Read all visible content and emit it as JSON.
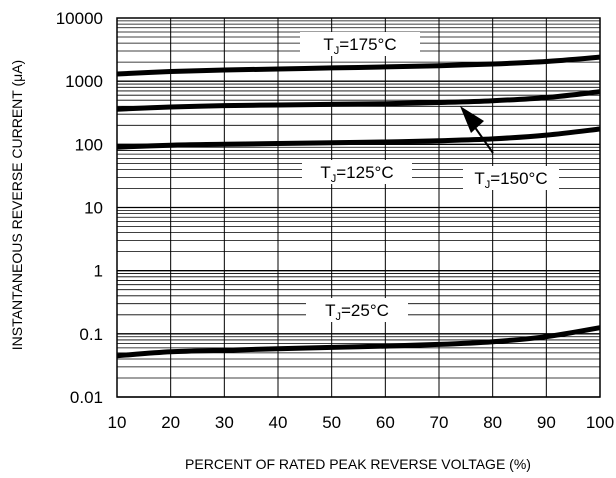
{
  "chart_data": {
    "type": "line",
    "xlabel": "PERCENT OF RATED PEAK REVERSE VOLTAGE (%)",
    "ylabel": "INSTANTANEOUS REVERSE CURRENT (μA)",
    "xlim": [
      10,
      100
    ],
    "ylim": [
      0.01,
      10000
    ],
    "yscale": "log",
    "grid": true,
    "x_ticks": [
      "10",
      "20",
      "30",
      "40",
      "50",
      "60",
      "70",
      "80",
      "90",
      "100"
    ],
    "y_ticks": [
      "0.01",
      "0.1",
      "1",
      "10",
      "100",
      "1000",
      "10000"
    ],
    "series": [
      {
        "label_prefix": "T",
        "label_sub": "J",
        "label_suffix": "=175°C",
        "x": [
          10,
          20,
          30,
          40,
          50,
          60,
          70,
          80,
          90,
          100
        ],
        "y": [
          1300,
          1420,
          1500,
          1560,
          1620,
          1680,
          1760,
          1870,
          2050,
          2400
        ]
      },
      {
        "label_prefix": "T",
        "label_sub": "J",
        "label_suffix": "=150°C",
        "x": [
          10,
          20,
          30,
          40,
          50,
          60,
          70,
          80,
          90,
          100
        ],
        "y": [
          360,
          390,
          410,
          420,
          430,
          440,
          460,
          490,
          550,
          680
        ]
      },
      {
        "label_prefix": "T",
        "label_sub": "J",
        "label_suffix": "=125°C",
        "x": [
          10,
          20,
          30,
          40,
          50,
          60,
          70,
          80,
          90,
          100
        ],
        "y": [
          90,
          97,
          100,
          103,
          106,
          109,
          114,
          122,
          140,
          175
        ]
      },
      {
        "label_prefix": "T",
        "label_sub": "J",
        "label_suffix": "=25°C",
        "x": [
          10,
          20,
          30,
          40,
          50,
          60,
          70,
          80,
          90,
          100
        ],
        "y": [
          0.045,
          0.052,
          0.055,
          0.058,
          0.061,
          0.064,
          0.068,
          0.075,
          0.09,
          0.125
        ]
      }
    ]
  }
}
